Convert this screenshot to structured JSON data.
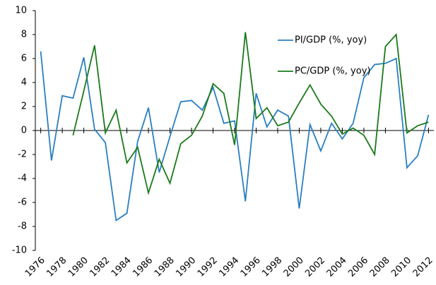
{
  "chart_data": {
    "type": "line",
    "x": [
      1976,
      1977,
      1978,
      1979,
      1980,
      1981,
      1982,
      1983,
      1984,
      1985,
      1986,
      1987,
      1988,
      1989,
      1990,
      1991,
      1992,
      1993,
      1994,
      1995,
      1996,
      1997,
      1998,
      1999,
      2000,
      2001,
      2002,
      2003,
      2004,
      2005,
      2006,
      2007,
      2008,
      2009,
      2010,
      2011,
      2012
    ],
    "series": [
      {
        "name": "PI/GDP (%, yoy)",
        "color": "#2a7fc1",
        "values": [
          6.6,
          -2.5,
          2.9,
          2.7,
          6.1,
          0.1,
          -1.0,
          -7.5,
          -6.9,
          -0.9,
          1.9,
          -3.5,
          -0.5,
          2.4,
          2.5,
          1.7,
          3.6,
          0.6,
          0.8,
          -5.9,
          3.1,
          0.3,
          1.7,
          1.2,
          -6.5,
          0.5,
          -1.7,
          0.6,
          -0.7,
          0.6,
          4.4,
          5.5,
          5.6,
          6.0,
          -3.1,
          -2.1,
          1.3
        ]
      },
      {
        "name": "PC/GDP (%, yoy)",
        "color": "#1a7a1a",
        "values": [
          null,
          null,
          null,
          -0.4,
          3.3,
          7.1,
          -0.2,
          1.7,
          -2.7,
          -1.4,
          -5.2,
          -2.4,
          -4.4,
          -1.1,
          -0.4,
          1.2,
          3.9,
          3.1,
          -1.2,
          8.2,
          1.0,
          1.9,
          0.4,
          0.7,
          2.3,
          3.8,
          2.2,
          1.2,
          -0.3,
          0.2,
          -0.4,
          -2.0,
          7.0,
          8.0,
          -0.2,
          0.4,
          0.7
        ]
      }
    ],
    "xlim": [
      1975.5,
      2012.5
    ],
    "xticks": [
      1976,
      1978,
      1980,
      1982,
      1984,
      1986,
      1988,
      1990,
      1992,
      1994,
      1996,
      1998,
      2000,
      2002,
      2004,
      2006,
      2008,
      2010,
      2012
    ],
    "ylim": [
      -10,
      10
    ],
    "yticks": [
      -10,
      -8,
      -6,
      -4,
      -2,
      0,
      2,
      4,
      6,
      8,
      10
    ],
    "legend": "upper-right"
  }
}
